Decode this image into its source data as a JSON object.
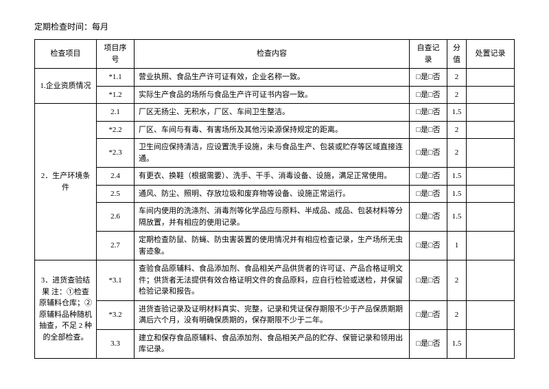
{
  "header": "定期检查时间：每月",
  "columns": {
    "project": "检查项目",
    "seq": "项目序号",
    "content": "检查内容",
    "self": "自查记录",
    "score": "分值",
    "disposal": "处置记录"
  },
  "check_opt": "□是□否",
  "sections": [
    {
      "name": "1.企业资质情况",
      "rows": [
        {
          "seq": "*1.1",
          "content": "营业执照、食品生产许可证有效，企业名称一致。",
          "score": "2"
        },
        {
          "seq": "*1.2",
          "content": "实际生产食品的场所与食品生产许可证书内容一致。",
          "score": "2"
        }
      ]
    },
    {
      "name": "2．生产环境条件",
      "rows": [
        {
          "seq": "2.1",
          "content": "厂区无扬尘、无积水，厂区、车间卫生整洁。",
          "score": "1.5"
        },
        {
          "seq": "*2.2",
          "content": "厂区、车间与有毒、有害场所及其他污染源保持规定的距离。",
          "score": "2"
        },
        {
          "seq": "*2.3",
          "content": "卫生间应保持清洁，应设置洗手设施，未与食品生产、包装或贮存等区域直接连通。",
          "score": "2"
        },
        {
          "seq": "2.4",
          "content": "有更衣、换鞋（根据需要）、洗手、干手、消毒设备、设施，满足正常使用。",
          "score": "1.5"
        },
        {
          "seq": "2.5",
          "content": "通风、防尘、照明、存放垃圾和废弃物等设备、设施正常运行。",
          "score": "1.5"
        },
        {
          "seq": "2.6",
          "content": "车间内使用的洗涤剂、消毒剂等化学品应与原料、半成品、成品、包装材料等分隔放置，并有相应的使用记录。",
          "score": "1.5"
        },
        {
          "seq": "2.7",
          "content": "定期检查防鼠、防蝇、防虫害装置的使用情况并有相应检查记录，生产场所无虫害迹象。",
          "score": "1"
        }
      ]
    },
    {
      "name": "3．进货查验结果 注：①检查原辅料仓库；②原辅料品种随机抽查，不足 2 种的全部检查。",
      "rows": [
        {
          "seq": "*3.1",
          "content": "查验食品原辅料、食品添加剂、食品相关产品供货者的许可证、产品合格证明文件；供货者无法提供有效合格证明文件的食品原料，应自行检验或送检，并保留检验记录和报告。",
          "score": "2"
        },
        {
          "seq": "*3.2",
          "content": "进货查验记录及证明材料真实、完整，记录和凭证保存期限不少于产品保质期期满后六个月，没有明确保质期的，保存期限不少于二年。",
          "score": "2"
        },
        {
          "seq": "3.3",
          "content": "建立和保存食品原辅料、食品添加剂、食品相关产品的贮存、保管记录和领用出库记录。",
          "score": "1.5"
        }
      ]
    }
  ]
}
